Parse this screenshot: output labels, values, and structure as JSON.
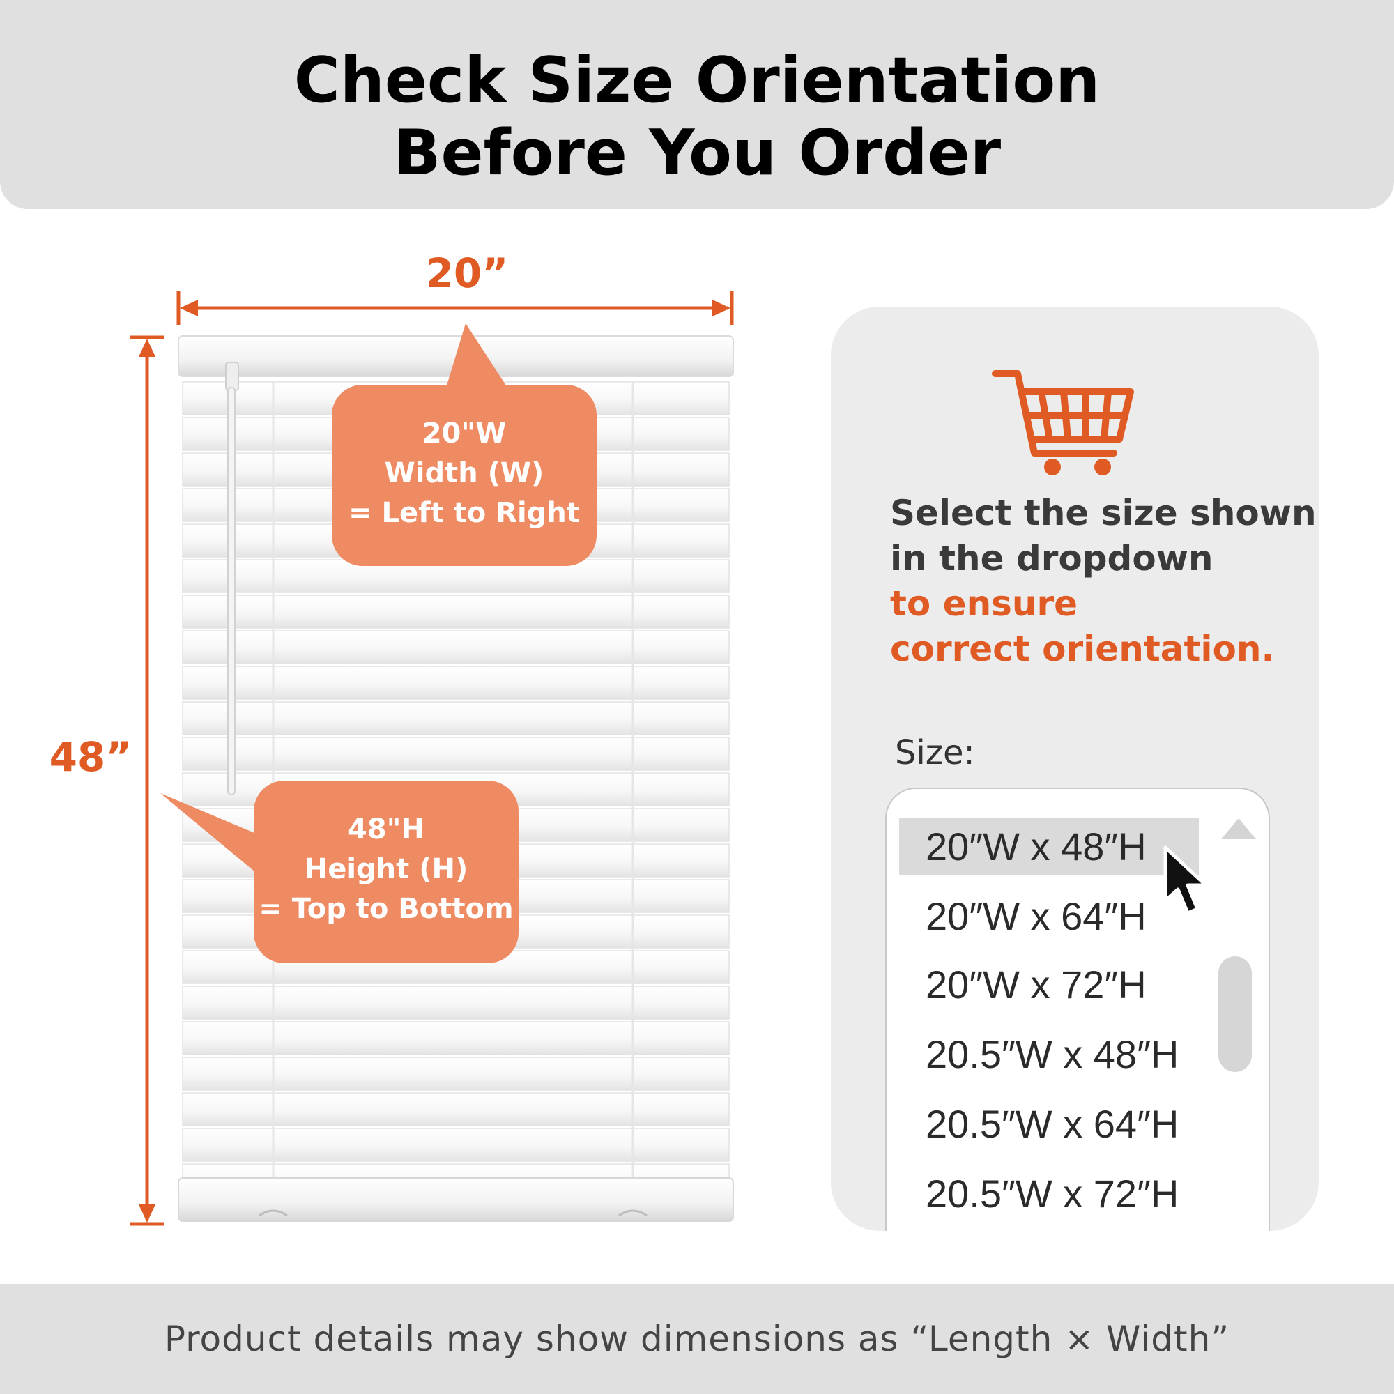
{
  "header": {
    "title_line1": "Check Size Orientation",
    "title_line2": "Before You Order"
  },
  "dimensions": {
    "width_label": "20”",
    "height_label": "48”"
  },
  "callouts": {
    "width": {
      "line1": "20\"W",
      "line2": "Width (W)",
      "line3": "= Left to Right"
    },
    "height": {
      "line1": "48\"H",
      "line2": "Height (H)",
      "line3": "= Top to Bottom"
    }
  },
  "panel": {
    "icon": "shopping-cart-icon",
    "instruction_line1": "Select the size shown",
    "instruction_line2": "in the dropdown",
    "instruction_line3": "to ensure",
    "instruction_line4": "correct orientation.",
    "size_label": "Size:",
    "options": [
      "20″W x 48″H",
      "20″W x 64″H",
      "20″W x 72″H",
      "20.5″W x 48″H",
      "20.5″W x 64″H",
      "20.5″W x 72″H"
    ],
    "selected_option": "20″W x 48″H"
  },
  "footer": {
    "note": "Product details may show dimensions as “Length × Width”"
  },
  "colors": {
    "accent": "#e05a24",
    "callout": "#ef8b63",
    "panel_bg": "#ececec",
    "header_bg": "#e0e0e0"
  }
}
